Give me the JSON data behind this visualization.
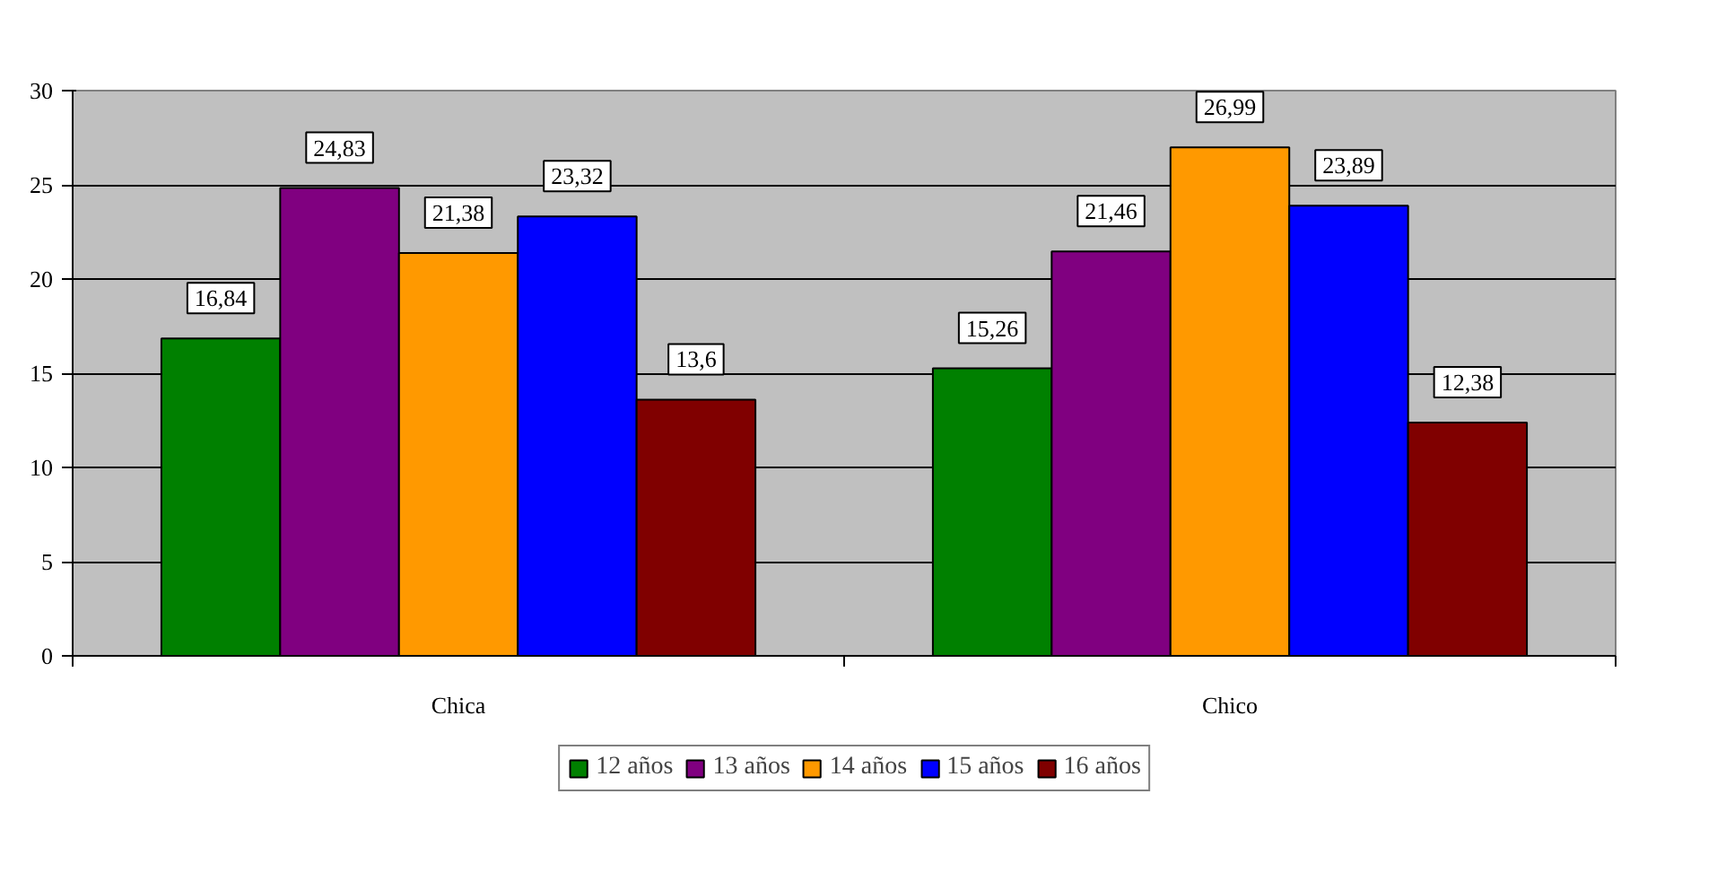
{
  "chart_data": {
    "type": "bar",
    "categories": [
      "Chica",
      "Chico"
    ],
    "series": [
      {
        "name": "12 años",
        "color": "#008000",
        "values": [
          16.84,
          15.26
        ],
        "value_labels": [
          "16,84",
          "15,26"
        ]
      },
      {
        "name": "13 años",
        "color": "#800080",
        "values": [
          24.83,
          21.46
        ],
        "value_labels": [
          "24,83",
          "21,46"
        ]
      },
      {
        "name": "14 años",
        "color": "#ff9900",
        "values": [
          21.38,
          26.99
        ],
        "value_labels": [
          "21,38",
          "26,99"
        ]
      },
      {
        "name": "15 años",
        "color": "#0000ff",
        "values": [
          23.32,
          23.89
        ],
        "value_labels": [
          "23,32",
          "23,89"
        ]
      },
      {
        "name": "16 años",
        "color": "#800000",
        "values": [
          13.6,
          12.38
        ],
        "value_labels": [
          "13,6",
          "12,38"
        ]
      }
    ],
    "ylim": [
      0,
      30
    ],
    "yticks": [
      0,
      5,
      10,
      15,
      20,
      25,
      30
    ],
    "grid": "y",
    "legend": "bottom"
  }
}
